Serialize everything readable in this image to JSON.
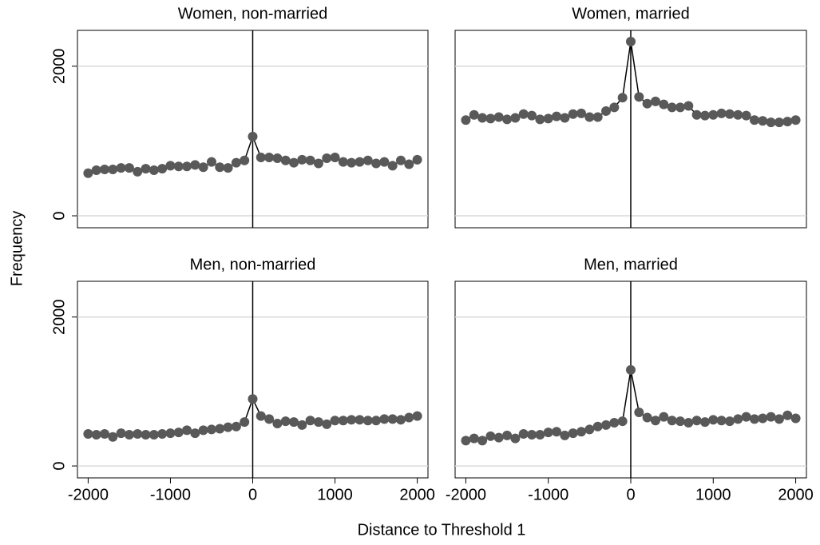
{
  "ylabel": "Frequency",
  "xlabel": "Distance to Threshold 1",
  "chart_data": [
    {
      "type": "scatter-line",
      "title": "Women, non-married",
      "color": "#595959",
      "line_color": "#000000",
      "vline": 0,
      "grid": true,
      "xlim": [
        -2130,
        2130
      ],
      "ylim": [
        -160,
        2480
      ],
      "yticks": [
        0,
        2000
      ],
      "x": [
        -2000,
        -1900,
        -1800,
        -1700,
        -1600,
        -1500,
        -1400,
        -1300,
        -1200,
        -1100,
        -1000,
        -900,
        -800,
        -700,
        -600,
        -500,
        -400,
        -300,
        -200,
        -100,
        0,
        100,
        200,
        300,
        400,
        500,
        600,
        700,
        800,
        900,
        1000,
        1100,
        1200,
        1300,
        1400,
        1500,
        1600,
        1700,
        1800,
        1900,
        2000
      ],
      "values": [
        570,
        610,
        620,
        620,
        640,
        640,
        590,
        630,
        610,
        630,
        670,
        660,
        660,
        680,
        650,
        720,
        650,
        640,
        710,
        740,
        1060,
        780,
        780,
        770,
        740,
        710,
        750,
        740,
        700,
        770,
        780,
        720,
        710,
        720,
        740,
        700,
        720,
        670,
        740,
        690,
        750
      ]
    },
    {
      "type": "scatter-line",
      "title": "Women, married",
      "color": "#595959",
      "line_color": "#000000",
      "vline": 0,
      "grid": true,
      "xlim": [
        -2130,
        2130
      ],
      "ylim": [
        -160,
        2480
      ],
      "yticks": [
        0,
        2000
      ],
      "x": [
        -2000,
        -1900,
        -1800,
        -1700,
        -1600,
        -1500,
        -1400,
        -1300,
        -1200,
        -1100,
        -1000,
        -900,
        -800,
        -700,
        -600,
        -500,
        -400,
        -300,
        -200,
        -100,
        0,
        100,
        200,
        300,
        400,
        500,
        600,
        700,
        800,
        900,
        1000,
        1100,
        1200,
        1300,
        1400,
        1500,
        1600,
        1700,
        1800,
        1900,
        2000
      ],
      "values": [
        1280,
        1350,
        1310,
        1300,
        1320,
        1290,
        1310,
        1360,
        1340,
        1290,
        1300,
        1330,
        1310,
        1360,
        1370,
        1320,
        1320,
        1400,
        1450,
        1580,
        2330,
        1590,
        1500,
        1530,
        1490,
        1450,
        1450,
        1470,
        1350,
        1340,
        1350,
        1370,
        1360,
        1350,
        1340,
        1280,
        1270,
        1250,
        1250,
        1260,
        1280
      ]
    },
    {
      "type": "scatter-line",
      "title": "Men, non-married",
      "color": "#595959",
      "line_color": "#000000",
      "vline": 0,
      "grid": true,
      "xlim": [
        -2130,
        2130
      ],
      "ylim": [
        -160,
        2480
      ],
      "yticks": [
        0,
        2000
      ],
      "xticks": [
        -2000,
        -1000,
        0,
        1000,
        2000
      ],
      "x": [
        -2000,
        -1900,
        -1800,
        -1700,
        -1600,
        -1500,
        -1400,
        -1300,
        -1200,
        -1100,
        -1000,
        -900,
        -800,
        -700,
        -600,
        -500,
        -400,
        -300,
        -200,
        -100,
        0,
        100,
        200,
        300,
        400,
        500,
        600,
        700,
        800,
        900,
        1000,
        1100,
        1200,
        1300,
        1400,
        1500,
        1600,
        1700,
        1800,
        1900,
        2000
      ],
      "values": [
        430,
        420,
        430,
        390,
        440,
        420,
        430,
        420,
        420,
        430,
        440,
        450,
        480,
        440,
        480,
        490,
        500,
        520,
        530,
        590,
        900,
        670,
        630,
        570,
        600,
        590,
        550,
        610,
        590,
        560,
        610,
        610,
        620,
        620,
        610,
        610,
        630,
        630,
        620,
        650,
        670
      ]
    },
    {
      "type": "scatter-line",
      "title": "Men, married",
      "color": "#595959",
      "line_color": "#000000",
      "vline": 0,
      "grid": true,
      "xlim": [
        -2130,
        2130
      ],
      "ylim": [
        -160,
        2480
      ],
      "yticks": [
        0,
        2000
      ],
      "xticks": [
        -2000,
        -1000,
        0,
        1000,
        2000
      ],
      "x": [
        -2000,
        -1900,
        -1800,
        -1700,
        -1600,
        -1500,
        -1400,
        -1300,
        -1200,
        -1100,
        -1000,
        -900,
        -800,
        -700,
        -600,
        -500,
        -400,
        -300,
        -200,
        -100,
        0,
        100,
        200,
        300,
        400,
        500,
        600,
        700,
        800,
        900,
        1000,
        1100,
        1200,
        1300,
        1400,
        1500,
        1600,
        1700,
        1800,
        1900,
        2000
      ],
      "values": [
        340,
        370,
        340,
        400,
        380,
        410,
        370,
        430,
        420,
        420,
        450,
        460,
        410,
        440,
        460,
        490,
        530,
        550,
        580,
        600,
        1290,
        720,
        650,
        610,
        660,
        610,
        600,
        580,
        610,
        590,
        620,
        610,
        600,
        630,
        660,
        630,
        640,
        660,
        630,
        680,
        640
      ]
    }
  ]
}
